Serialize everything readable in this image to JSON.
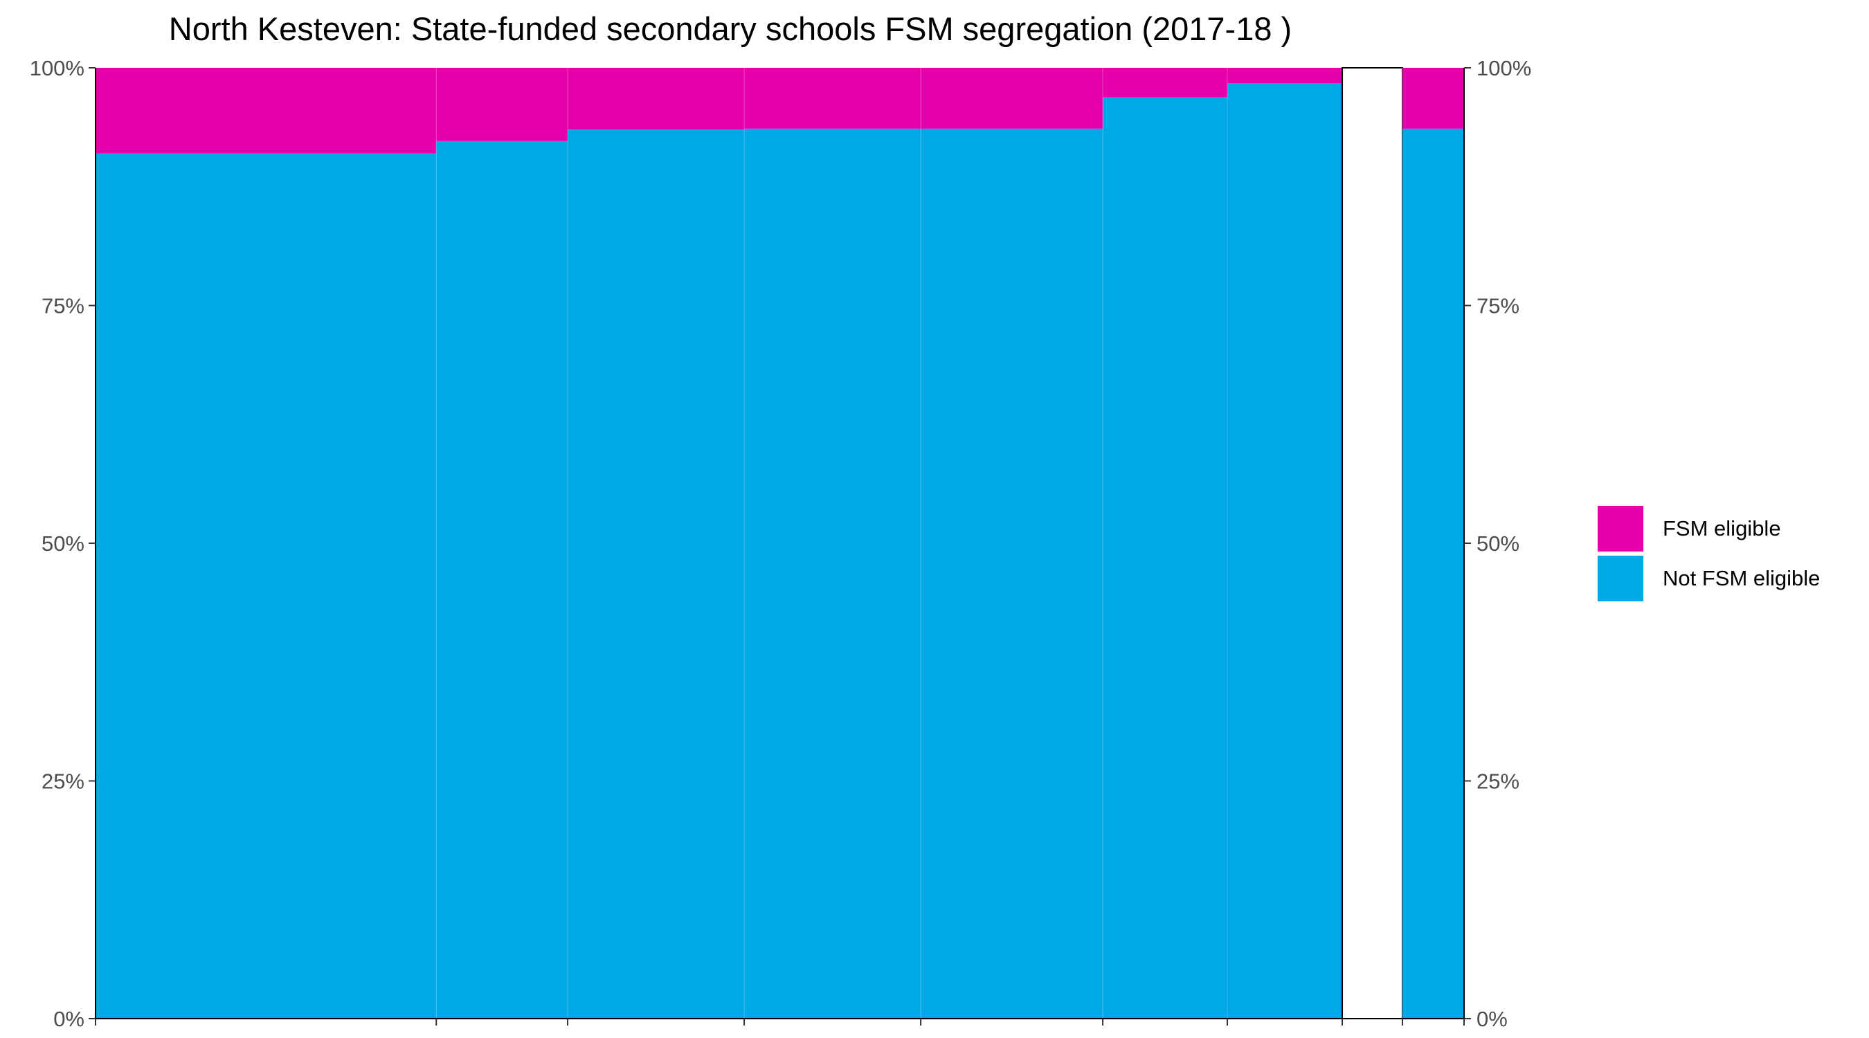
{
  "chart_data": {
    "type": "bar",
    "title": "North Kesteven: State-funded secondary schools FSM segregation (2017-18 )",
    "xlabel": "",
    "ylabel": "",
    "ylim": [
      0,
      1
    ],
    "y_ticks": [
      "0%",
      "25%",
      "50%",
      "75%",
      "100%"
    ],
    "y_tick_values": [
      0,
      0.25,
      0.5,
      0.75,
      1
    ],
    "legend": {
      "position": "right",
      "entries": [
        "FSM eligible",
        "Not FSM eligible"
      ]
    },
    "grid": false,
    "bars_note": "variable-width stacked bars; width = share of pupils",
    "bars": [
      {
        "width": 0.249,
        "not_fsm": 0.91,
        "fsm": 0.09
      },
      {
        "width": 0.096,
        "not_fsm": 0.923,
        "fsm": 0.077
      },
      {
        "width": 0.129,
        "not_fsm": 0.935,
        "fsm": 0.065
      },
      {
        "width": 0.129,
        "not_fsm": 0.936,
        "fsm": 0.064
      },
      {
        "width": 0.133,
        "not_fsm": 0.936,
        "fsm": 0.064
      },
      {
        "width": 0.091,
        "not_fsm": 0.969,
        "fsm": 0.031
      },
      {
        "width": 0.084,
        "not_fsm": 0.984,
        "fsm": 0.016
      },
      {
        "width": 0.044,
        "not_fsm": 0,
        "fsm": 0,
        "empty": true
      },
      {
        "width": 0.045,
        "not_fsm": 0.936,
        "fsm": 0.064
      }
    ],
    "series": [
      {
        "name": "FSM eligible",
        "color": "#E600AC"
      },
      {
        "name": "Not FSM eligible",
        "color": "#00A8E6"
      }
    ]
  }
}
